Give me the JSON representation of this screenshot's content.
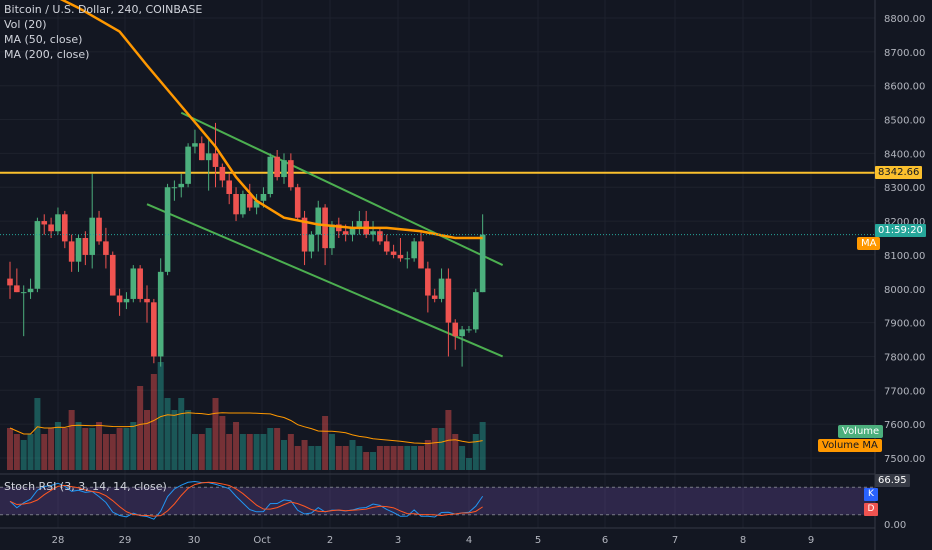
{
  "legend": {
    "title": "Bitcoin / U.S. Dollar, 240, COINBASE",
    "vol": "Vol (20)",
    "ma50": "MA (50, close)",
    "ma200": "MA (200, close)"
  },
  "stoch_label": "Stoch RSI (3, 3, 14, 14, close)",
  "tags": {
    "resistance": "8342.66",
    "current_time": "01:59:20",
    "ma": "MA",
    "volume": "Volume",
    "volume_ma": "Volume MA",
    "stoch_value": "66.95",
    "k": "K",
    "d": "D"
  },
  "colors": {
    "background": "#131722",
    "up": "#26a69a",
    "up_body": "#4caf7d",
    "down": "#ef5350",
    "ma": "#ff9800",
    "channel": "#4caf50",
    "resistance": "#fbc02d",
    "stoch_k": "#2196f3",
    "stoch_d": "#ff5722",
    "stoch_band": "#7e57c2"
  },
  "chart_data": {
    "type": "candlestick",
    "title": "Bitcoin / U.S. Dollar, 240, COINBASE",
    "y_axis": {
      "min": 7450,
      "max": 8850,
      "ticks": [
        7500,
        7600,
        7700,
        7800,
        7900,
        8000,
        8100,
        8200,
        8300,
        8400,
        8500,
        8600,
        8700,
        8800
      ]
    },
    "x_ticks": [
      "28",
      "29",
      "30",
      "Oct",
      "2",
      "3",
      "4",
      "5",
      "6",
      "7",
      "8",
      "9"
    ],
    "resistance_level": 8342.66,
    "current_price_label": "01:59:20",
    "candles": [
      {
        "o": 8030,
        "h": 8080,
        "l": 7970,
        "c": 8010
      },
      {
        "o": 8010,
        "h": 8060,
        "l": 7990,
        "c": 7990
      },
      {
        "o": 7990,
        "h": 8010,
        "l": 7860,
        "c": 7990
      },
      {
        "o": 7990,
        "h": 8030,
        "l": 7970,
        "c": 8000
      },
      {
        "o": 8000,
        "h": 8210,
        "l": 7990,
        "c": 8200
      },
      {
        "o": 8200,
        "h": 8220,
        "l": 8160,
        "c": 8190
      },
      {
        "o": 8190,
        "h": 8210,
        "l": 8150,
        "c": 8170
      },
      {
        "o": 8170,
        "h": 8240,
        "l": 8160,
        "c": 8220
      },
      {
        "o": 8220,
        "h": 8230,
        "l": 8120,
        "c": 8140
      },
      {
        "o": 8140,
        "h": 8160,
        "l": 8050,
        "c": 8080
      },
      {
        "o": 8080,
        "h": 8160,
        "l": 8050,
        "c": 8150
      },
      {
        "o": 8150,
        "h": 8170,
        "l": 8070,
        "c": 8100
      },
      {
        "o": 8100,
        "h": 8340,
        "l": 8060,
        "c": 8210
      },
      {
        "o": 8210,
        "h": 8230,
        "l": 8130,
        "c": 8140
      },
      {
        "o": 8140,
        "h": 8180,
        "l": 8060,
        "c": 8100
      },
      {
        "o": 8100,
        "h": 8110,
        "l": 7980,
        "c": 7980
      },
      {
        "o": 7980,
        "h": 8000,
        "l": 7920,
        "c": 7960
      },
      {
        "o": 7960,
        "h": 7990,
        "l": 7940,
        "c": 7970
      },
      {
        "o": 7970,
        "h": 8070,
        "l": 7960,
        "c": 8060
      },
      {
        "o": 8060,
        "h": 8070,
        "l": 7960,
        "c": 7970
      },
      {
        "o": 7970,
        "h": 8010,
        "l": 7900,
        "c": 7960
      },
      {
        "o": 7960,
        "h": 7970,
        "l": 7780,
        "c": 7800
      },
      {
        "o": 7800,
        "h": 8090,
        "l": 7770,
        "c": 8050
      },
      {
        "o": 8050,
        "h": 8310,
        "l": 8040,
        "c": 8300
      },
      {
        "o": 8300,
        "h": 8320,
        "l": 8260,
        "c": 8300
      },
      {
        "o": 8300,
        "h": 8340,
        "l": 8270,
        "c": 8310
      },
      {
        "o": 8310,
        "h": 8430,
        "l": 8300,
        "c": 8420
      },
      {
        "o": 8420,
        "h": 8470,
        "l": 8400,
        "c": 8430
      },
      {
        "o": 8430,
        "h": 8450,
        "l": 8380,
        "c": 8380
      },
      {
        "o": 8380,
        "h": 8440,
        "l": 8290,
        "c": 8400
      },
      {
        "o": 8400,
        "h": 8490,
        "l": 8300,
        "c": 8360
      },
      {
        "o": 8360,
        "h": 8370,
        "l": 8300,
        "c": 8320
      },
      {
        "o": 8320,
        "h": 8340,
        "l": 8250,
        "c": 8280
      },
      {
        "o": 8280,
        "h": 8300,
        "l": 8200,
        "c": 8220
      },
      {
        "o": 8220,
        "h": 8290,
        "l": 8210,
        "c": 8280
      },
      {
        "o": 8280,
        "h": 8310,
        "l": 8230,
        "c": 8240
      },
      {
        "o": 8240,
        "h": 8280,
        "l": 8220,
        "c": 8260
      },
      {
        "o": 8260,
        "h": 8300,
        "l": 8240,
        "c": 8280
      },
      {
        "o": 8280,
        "h": 8400,
        "l": 8270,
        "c": 8390
      },
      {
        "o": 8390,
        "h": 8410,
        "l": 8320,
        "c": 8330
      },
      {
        "o": 8330,
        "h": 8400,
        "l": 8310,
        "c": 8380
      },
      {
        "o": 8380,
        "h": 8400,
        "l": 8290,
        "c": 8300
      },
      {
        "o": 8300,
        "h": 8310,
        "l": 8200,
        "c": 8210
      },
      {
        "o": 8210,
        "h": 8230,
        "l": 8070,
        "c": 8110
      },
      {
        "o": 8110,
        "h": 8170,
        "l": 8090,
        "c": 8160
      },
      {
        "o": 8160,
        "h": 8260,
        "l": 8110,
        "c": 8240
      },
      {
        "o": 8240,
        "h": 8250,
        "l": 8070,
        "c": 8120
      },
      {
        "o": 8120,
        "h": 8200,
        "l": 8100,
        "c": 8190
      },
      {
        "o": 8190,
        "h": 8210,
        "l": 8150,
        "c": 8170
      },
      {
        "o": 8170,
        "h": 8190,
        "l": 8140,
        "c": 8160
      },
      {
        "o": 8160,
        "h": 8200,
        "l": 8140,
        "c": 8180
      },
      {
        "o": 8180,
        "h": 8230,
        "l": 8160,
        "c": 8200
      },
      {
        "o": 8200,
        "h": 8230,
        "l": 8150,
        "c": 8160
      },
      {
        "o": 8160,
        "h": 8200,
        "l": 8140,
        "c": 8170
      },
      {
        "o": 8170,
        "h": 8180,
        "l": 8130,
        "c": 8140
      },
      {
        "o": 8140,
        "h": 8160,
        "l": 8100,
        "c": 8110
      },
      {
        "o": 8110,
        "h": 8130,
        "l": 8090,
        "c": 8100
      },
      {
        "o": 8100,
        "h": 8150,
        "l": 8080,
        "c": 8090
      },
      {
        "o": 8090,
        "h": 8110,
        "l": 8060,
        "c": 8090
      },
      {
        "o": 8090,
        "h": 8150,
        "l": 8080,
        "c": 8140
      },
      {
        "o": 8140,
        "h": 8170,
        "l": 8060,
        "c": 8060
      },
      {
        "o": 8060,
        "h": 8080,
        "l": 7930,
        "c": 7980
      },
      {
        "o": 7980,
        "h": 8000,
        "l": 7960,
        "c": 7970
      },
      {
        "o": 7970,
        "h": 8060,
        "l": 7960,
        "c": 8030
      },
      {
        "o": 8030,
        "h": 8060,
        "l": 7800,
        "c": 7900
      },
      {
        "o": 7900,
        "h": 7910,
        "l": 7820,
        "c": 7860
      },
      {
        "o": 7860,
        "h": 7890,
        "l": 7770,
        "c": 7880
      },
      {
        "o": 7880,
        "h": 7890,
        "l": 7870,
        "c": 7880
      },
      {
        "o": 7880,
        "h": 8000,
        "l": 7870,
        "c": 7990
      },
      {
        "o": 7990,
        "h": 8220,
        "l": 7990,
        "c": 8160
      }
    ],
    "ma_series": [
      [
        0,
        8930
      ],
      [
        10,
        8830
      ],
      [
        16,
        8760
      ],
      [
        20,
        8660
      ],
      [
        25,
        8540
      ],
      [
        30,
        8420
      ],
      [
        33,
        8330
      ],
      [
        36,
        8260
      ],
      [
        40,
        8210
      ],
      [
        45,
        8190
      ],
      [
        50,
        8180
      ],
      [
        55,
        8180
      ],
      [
        60,
        8170
      ],
      [
        65,
        8150
      ],
      [
        69,
        8150
      ]
    ],
    "channel_upper": [
      [
        25,
        8520
      ],
      [
        69,
        8070
      ]
    ],
    "channel_lower": [
      [
        20,
        8250
      ],
      [
        69,
        7800
      ]
    ],
    "volume": [
      0.35,
      0.3,
      0.25,
      0.3,
      0.6,
      0.3,
      0.35,
      0.4,
      0.35,
      0.5,
      0.4,
      0.35,
      0.35,
      0.4,
      0.3,
      0.3,
      0.35,
      0.35,
      0.4,
      0.7,
      0.5,
      0.8,
      0.9,
      0.6,
      0.5,
      0.6,
      0.5,
      0.3,
      0.3,
      0.35,
      0.6,
      0.45,
      0.3,
      0.4,
      0.3,
      0.3,
      0.3,
      0.3,
      0.35,
      0.35,
      0.25,
      0.3,
      0.2,
      0.25,
      0.2,
      0.2,
      0.45,
      0.3,
      0.2,
      0.2,
      0.25,
      0.2,
      0.15,
      0.15,
      0.2,
      0.2,
      0.2,
      0.2,
      0.2,
      0.2,
      0.2,
      0.25,
      0.35,
      0.35,
      0.5,
      0.3,
      0.2,
      0.1,
      0.3,
      0.4
    ],
    "stoch_bands": [
      20,
      80
    ],
    "stoch_k_value": 66.95
  }
}
